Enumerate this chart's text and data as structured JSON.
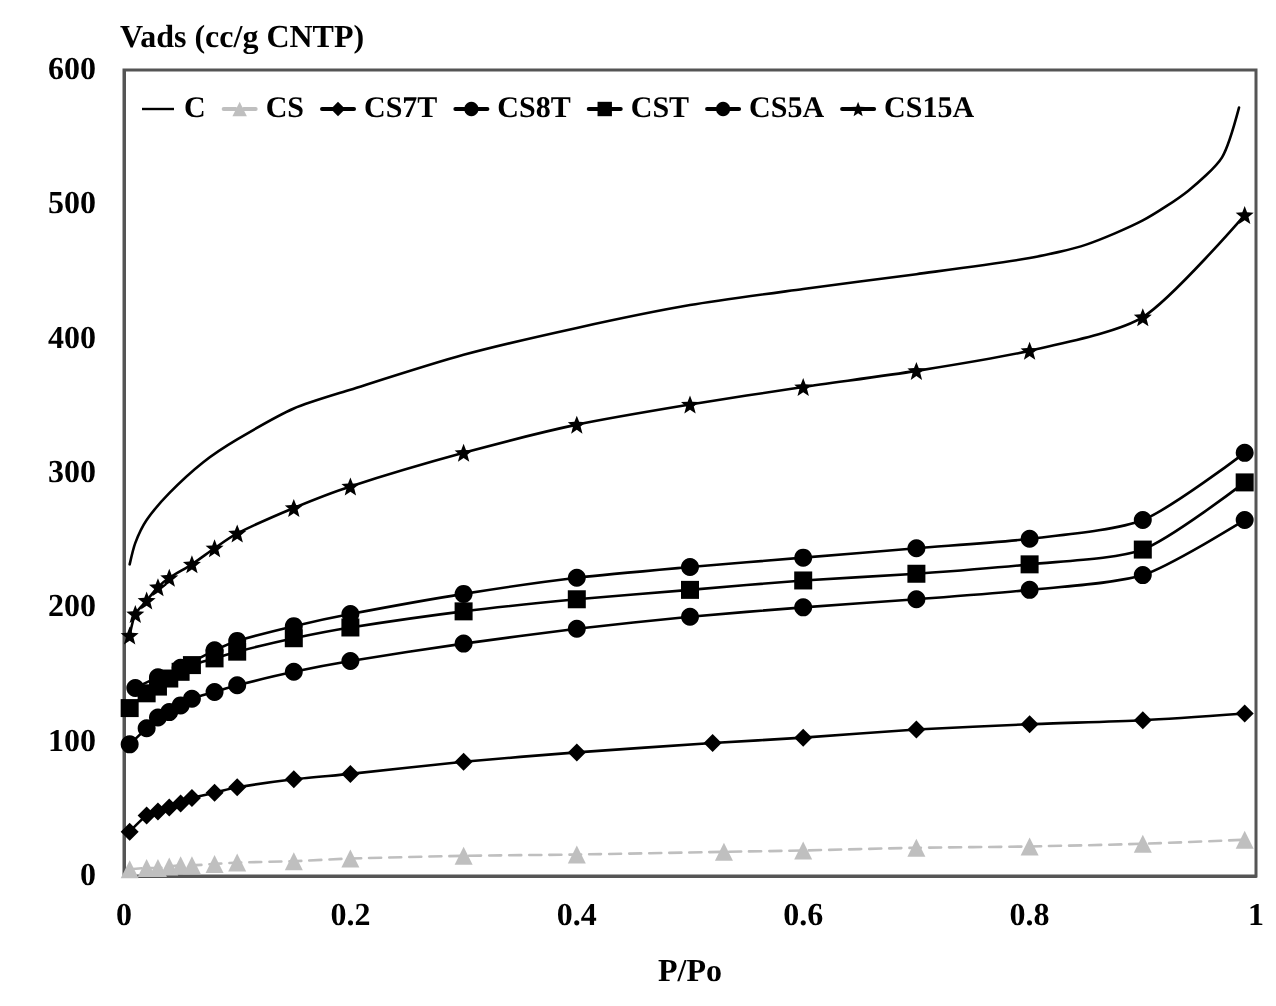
{
  "chart_data": {
    "type": "line",
    "ylabel": "Vads (cc/g CNTP)",
    "xlabel": "P/Po",
    "xlim": [
      0,
      1
    ],
    "xticks": [
      0,
      0.2,
      0.4,
      0.6,
      0.8,
      1
    ],
    "ylim": [
      0,
      600
    ],
    "yticks": [
      0,
      100,
      200,
      300,
      400,
      500,
      600
    ],
    "grid": false,
    "legend": "top left",
    "line_style": "solid",
    "series": [
      {
        "name": "C",
        "color": "#000000",
        "marker": "none",
        "x": [
          0.005,
          0.01,
          0.02,
          0.04,
          0.07,
          0.1,
          0.15,
          0.2,
          0.3,
          0.4,
          0.5,
          0.6,
          0.7,
          0.8,
          0.85,
          0.9,
          0.94,
          0.97,
          0.985
        ],
        "values": [
          232,
          248,
          265,
          285,
          308,
          325,
          348,
          362,
          388,
          408,
          425,
          437,
          448,
          460,
          470,
          488,
          510,
          535,
          572
        ]
      },
      {
        "name": "CS",
        "color": "#bfbfbf",
        "marker": "triangle",
        "line_style": "dashed",
        "x": [
          0.005,
          0.02,
          0.03,
          0.04,
          0.05,
          0.06,
          0.08,
          0.1,
          0.15,
          0.2,
          0.3,
          0.4,
          0.53,
          0.6,
          0.7,
          0.8,
          0.9,
          0.99
        ],
        "values": [
          5,
          6,
          6,
          7,
          8,
          8,
          9,
          10,
          11,
          13,
          15,
          16,
          18,
          19,
          21,
          22,
          24,
          27
        ]
      },
      {
        "name": "CS7T",
        "color": "#000000",
        "marker": "diamond",
        "x": [
          0.005,
          0.02,
          0.03,
          0.04,
          0.05,
          0.06,
          0.08,
          0.1,
          0.15,
          0.2,
          0.3,
          0.4,
          0.52,
          0.6,
          0.7,
          0.8,
          0.9,
          0.99
        ],
        "values": [
          33,
          45,
          48,
          51,
          54,
          58,
          62,
          66,
          72,
          76,
          85,
          92,
          99,
          103,
          109,
          113,
          116,
          121
        ]
      },
      {
        "name": "CS8T",
        "color": "#000000",
        "marker": "circle",
        "x": [
          0.005,
          0.02,
          0.03,
          0.04,
          0.05,
          0.06,
          0.08,
          0.1,
          0.15,
          0.2,
          0.3,
          0.4,
          0.5,
          0.6,
          0.7,
          0.8,
          0.9,
          0.99
        ],
        "values": [
          98,
          110,
          118,
          122,
          127,
          132,
          137,
          142,
          152,
          160,
          173,
          184,
          193,
          200,
          206,
          213,
          224,
          265
        ]
      },
      {
        "name": "CST",
        "color": "#000000",
        "marker": "square",
        "x": [
          0.005,
          0.02,
          0.03,
          0.04,
          0.05,
          0.06,
          0.08,
          0.1,
          0.15,
          0.2,
          0.3,
          0.4,
          0.5,
          0.6,
          0.7,
          0.8,
          0.9,
          0.99
        ],
        "values": [
          125,
          136,
          141,
          147,
          152,
          157,
          162,
          167,
          177,
          185,
          197,
          206,
          213,
          220,
          225,
          232,
          243,
          293
        ]
      },
      {
        "name": "CS5A",
        "color": "#000000",
        "marker": "circle",
        "x": [
          0.01,
          0.03,
          0.05,
          0.08,
          0.1,
          0.15,
          0.2,
          0.3,
          0.4,
          0.5,
          0.6,
          0.7,
          0.8,
          0.9,
          0.99
        ],
        "values": [
          140,
          148,
          155,
          168,
          175,
          186,
          195,
          210,
          222,
          230,
          237,
          244,
          251,
          265,
          315
        ]
      },
      {
        "name": "CS15A",
        "color": "#000000",
        "marker": "star",
        "x": [
          0.005,
          0.01,
          0.02,
          0.03,
          0.04,
          0.06,
          0.08,
          0.1,
          0.15,
          0.2,
          0.3,
          0.4,
          0.5,
          0.6,
          0.7,
          0.8,
          0.9,
          0.99
        ],
        "values": [
          179,
          195,
          205,
          215,
          222,
          232,
          244,
          255,
          274,
          290,
          315,
          336,
          351,
          364,
          376,
          391,
          416,
          492
        ]
      }
    ]
  }
}
